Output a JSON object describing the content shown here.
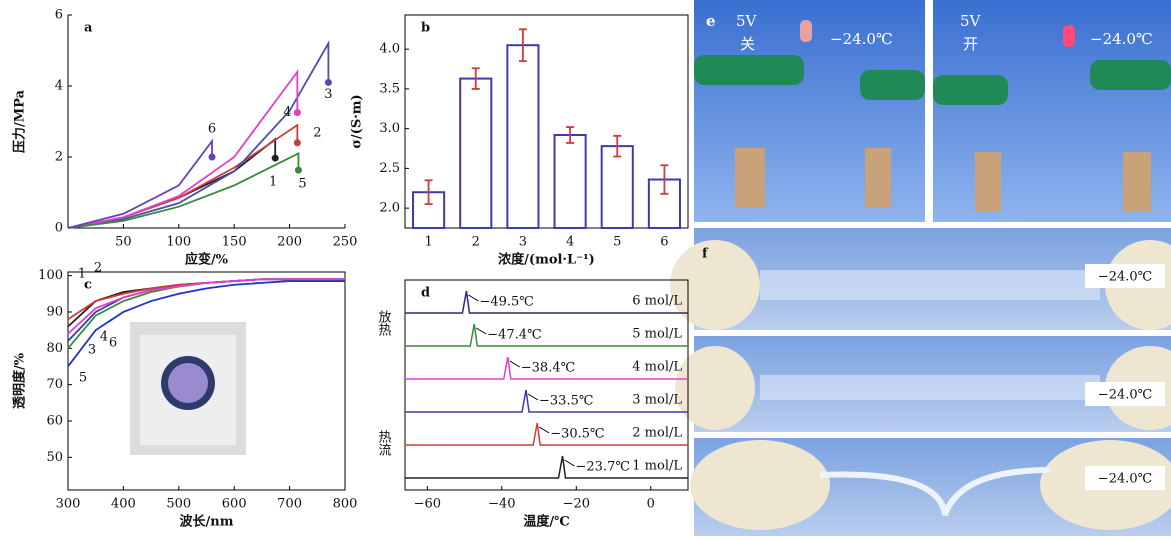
{
  "chart_data": [
    {
      "type": "line",
      "panel_label": "a",
      "x_label": "应变/%",
      "y_label": "压力/MPa",
      "xlim": [
        0,
        250
      ],
      "ylim": [
        0,
        6
      ],
      "xticks": [
        50,
        100,
        150,
        200,
        250
      ],
      "yticks": [
        0,
        2,
        4,
        6
      ],
      "series": [
        {
          "name": "1",
          "color": "#222222",
          "x": [
            0,
            50,
            100,
            150,
            187,
            187
          ],
          "values": [
            0,
            0.3,
            0.85,
            1.6,
            2.5,
            1.97
          ]
        },
        {
          "name": "2",
          "color": "#d23b3b",
          "x": [
            0,
            50,
            100,
            150,
            207,
            207
          ],
          "values": [
            0,
            0.3,
            0.85,
            1.7,
            2.9,
            2.4
          ]
        },
        {
          "name": "3",
          "color": "#4a4fb0",
          "x": [
            0,
            50,
            100,
            150,
            200,
            235,
            235
          ],
          "values": [
            0,
            0.25,
            0.7,
            1.6,
            3.3,
            5.2,
            4.1
          ]
        },
        {
          "name": "4",
          "color": "#e040c8",
          "x": [
            0,
            50,
            100,
            150,
            207,
            207
          ],
          "values": [
            0,
            0.3,
            0.9,
            2.0,
            4.4,
            3.25
          ]
        },
        {
          "name": "5",
          "color": "#3a8a3a",
          "x": [
            0,
            50,
            100,
            150,
            208,
            208
          ],
          "values": [
            0,
            0.2,
            0.6,
            1.2,
            2.1,
            1.63
          ]
        },
        {
          "name": "6",
          "color": "#6b3fc0",
          "x": [
            0,
            50,
            100,
            130,
            130
          ],
          "values": [
            0,
            0.4,
            1.2,
            2.45,
            2.0
          ]
        }
      ]
    },
    {
      "type": "bar",
      "panel_label": "b",
      "x_label": "浓度/(mol·L⁻¹)",
      "y_label": "σ/(S·m)",
      "ylim": [
        1.75,
        4.43
      ],
      "yticks": [
        {
          "value": 2,
          "label": "2.0"
        },
        2.5,
        {
          "value": 3,
          "label": "3.0"
        },
        3.5,
        {
          "value": 4,
          "label": "4.0"
        }
      ],
      "categories": [
        "1",
        "2",
        "3",
        "4",
        "5",
        "6"
      ],
      "values": [
        2.2,
        3.63,
        4.05,
        2.92,
        2.78,
        2.36
      ],
      "errors": [
        0.15,
        0.13,
        0.2,
        0.1,
        0.13,
        0.18
      ],
      "color": "#3b3bb0",
      "error_color": "#d23b3b"
    },
    {
      "type": "line",
      "panel_label": "c",
      "x_label": "波长/nm",
      "y_label": "透明度/%",
      "xlim": [
        300,
        800
      ],
      "ylim": [
        41,
        101
      ],
      "xticks": [
        300,
        400,
        500,
        600,
        700,
        800
      ],
      "yticks": [
        50,
        60,
        70,
        80,
        90,
        100
      ],
      "x": [
        300,
        350,
        400,
        450,
        500,
        550,
        600,
        650,
        700,
        750,
        800
      ],
      "series": [
        {
          "name": "1",
          "color": "#222222",
          "values": [
            86,
            93,
            95.5,
            96.5,
            97.5,
            98,
            98.5,
            99,
            99,
            99,
            99
          ]
        },
        {
          "name": "2",
          "color": "#d23b3b",
          "values": [
            88,
            93,
            95,
            96.5,
            97.5,
            98,
            98.5,
            99,
            99,
            99,
            99
          ]
        },
        {
          "name": "3",
          "color": "#3b3bb0",
          "values": [
            82,
            90,
            94,
            96,
            97,
            98,
            98.5,
            99,
            99,
            99,
            99
          ]
        },
        {
          "name": "4",
          "color": "#3a8a3a",
          "values": [
            80,
            89,
            93,
            95.5,
            97,
            98,
            98.5,
            99,
            99,
            99,
            99
          ]
        },
        {
          "name": "5",
          "color": "#2030d0",
          "values": [
            75,
            85,
            90,
            93,
            95,
            96.5,
            97.5,
            98,
            98.5,
            98.5,
            98.5
          ]
        },
        {
          "name": "6",
          "color": "#e040c8",
          "values": [
            84,
            91,
            94,
            96,
            97,
            98,
            98.5,
            99,
            99,
            99,
            99
          ]
        }
      ]
    },
    {
      "type": "peaks",
      "panel_label": "d",
      "x_label": "温度/℃",
      "y_label_top": "放热",
      "y_label_bottom": "热流",
      "xlim": [
        -66,
        10
      ],
      "xticks": [
        {
          "value": -60,
          "label": "−60"
        },
        {
          "value": -40,
          "label": "−40"
        },
        {
          "value": -20,
          "label": "−20"
        },
        0
      ],
      "series": [
        {
          "name": "1 mol/L",
          "color": "#222222",
          "peak": -23.7,
          "peak_label": "−23.7℃"
        },
        {
          "name": "2 mol/L",
          "color": "#d23b3b",
          "peak": -30.5,
          "peak_label": "−30.5℃"
        },
        {
          "name": "3 mol/L",
          "color": "#3b3bb0",
          "peak": -33.5,
          "peak_label": "−33.5℃"
        },
        {
          "name": "4 mol/L",
          "color": "#e040c8",
          "peak": -38.4,
          "peak_label": "−38.4℃"
        },
        {
          "name": "5 mol/L",
          "color": "#3a8a3a",
          "peak": -47.4,
          "peak_label": "−47.4℃"
        },
        {
          "name": "6 mol/L",
          "color": "#2a2a80",
          "peak": -49.5,
          "peak_label": "−49.5℃"
        }
      ]
    }
  ],
  "photo_panels": {
    "e": {
      "label": "e",
      "left": {
        "voltage": "5V",
        "state": "关",
        "temperature": "−24.0℃"
      },
      "right": {
        "voltage": "5V",
        "state": "开",
        "temperature": "−24.0℃"
      }
    },
    "f": {
      "label": "f",
      "temperatures": [
        "−24.0℃",
        "−24.0℃",
        "−24.0℃"
      ]
    }
  }
}
